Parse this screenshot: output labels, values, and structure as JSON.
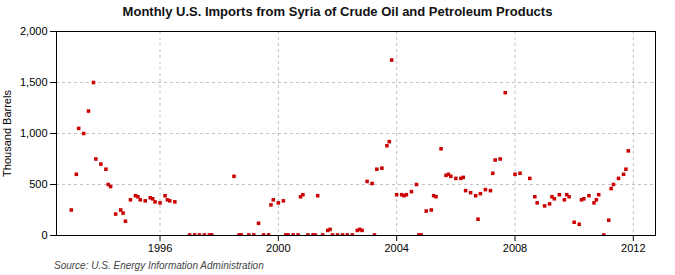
{
  "chart_data": {
    "type": "scatter",
    "title": "Monthly U.S. Imports from Syria of Crude Oil and Petroleum Products",
    "y_label": "Thousand Barrels",
    "annotations": [
      "Source: U.S. Energy Information Administration"
    ],
    "color": "#CC0000",
    "marker": "square",
    "grid": true,
    "xlim": [
      1992.5,
      2012.75
    ],
    "xticks": [
      1996,
      2000,
      2004,
      2008,
      2012
    ],
    "ylim": [
      0,
      2000
    ],
    "yticks": [
      0,
      500,
      {
        "value": 1000,
        "label": "1,000"
      },
      {
        "value": 1500,
        "label": "1,500"
      },
      {
        "value": 2000,
        "label": "2,000"
      }
    ],
    "x": [
      1993.0,
      1993.17,
      1993.25,
      1993.42,
      1993.58,
      1993.75,
      1993.83,
      1994.0,
      1994.17,
      1994.25,
      1994.33,
      1994.5,
      1994.67,
      1994.75,
      1994.83,
      1995.0,
      1995.17,
      1995.25,
      1995.33,
      1995.5,
      1995.67,
      1995.75,
      1995.83,
      1996.0,
      1996.17,
      1996.25,
      1996.33,
      1996.5,
      1997.0,
      1997.17,
      1997.33,
      1997.5,
      1997.67,
      1997.75,
      1998.5,
      1998.67,
      1998.75,
      1999.0,
      1999.17,
      1999.33,
      1999.5,
      1999.67,
      1999.75,
      1999.83,
      2000.0,
      2000.17,
      2000.25,
      2000.33,
      2000.5,
      2000.67,
      2000.75,
      2000.83,
      2001.0,
      2001.17,
      2001.25,
      2001.33,
      2001.5,
      2001.67,
      2001.75,
      2001.83,
      2002.0,
      2002.17,
      2002.33,
      2002.5,
      2002.67,
      2002.75,
      2002.83,
      2003.0,
      2003.17,
      2003.25,
      2003.33,
      2003.5,
      2003.67,
      2003.75,
      2003.83,
      2004.0,
      2004.17,
      2004.25,
      2004.33,
      2004.5,
      2004.67,
      2004.75,
      2004.83,
      2005.0,
      2005.17,
      2005.25,
      2005.33,
      2005.5,
      2005.67,
      2005.75,
      2005.83,
      2006.0,
      2006.17,
      2006.25,
      2006.33,
      2006.5,
      2006.67,
      2006.75,
      2006.83,
      2007.0,
      2007.17,
      2007.25,
      2007.33,
      2007.5,
      2007.67,
      2008.0,
      2008.17,
      2008.5,
      2008.67,
      2008.75,
      2009.0,
      2009.17,
      2009.25,
      2009.33,
      2009.5,
      2009.67,
      2009.75,
      2009.83,
      2010.0,
      2010.17,
      2010.25,
      2010.33,
      2010.5,
      2010.67,
      2010.75,
      2010.83,
      2011.0,
      2011.17,
      2011.25,
      2011.33,
      2011.5,
      2011.67,
      2011.75,
      2011.83
    ],
    "values": [
      250,
      600,
      1050,
      1000,
      1220,
      1500,
      750,
      700,
      650,
      500,
      480,
      210,
      250,
      220,
      140,
      350,
      390,
      380,
      350,
      340,
      370,
      360,
      330,
      320,
      390,
      350,
      340,
      330,
      5,
      5,
      5,
      5,
      5,
      5,
      580,
      5,
      5,
      5,
      5,
      120,
      5,
      5,
      300,
      350,
      320,
      340,
      5,
      5,
      5,
      5,
      380,
      400,
      5,
      5,
      5,
      390,
      5,
      50,
      60,
      5,
      5,
      5,
      5,
      5,
      50,
      60,
      50,
      530,
      510,
      5,
      650,
      660,
      880,
      920,
      1720,
      400,
      400,
      390,
      400,
      430,
      500,
      5,
      5,
      240,
      250,
      390,
      380,
      850,
      590,
      600,
      580,
      560,
      560,
      570,
      440,
      420,
      390,
      160,
      410,
      450,
      440,
      610,
      740,
      750,
      1400,
      600,
      610,
      560,
      380,
      320,
      290,
      310,
      380,
      360,
      400,
      350,
      400,
      380,
      130,
      110,
      350,
      360,
      390,
      320,
      350,
      400,
      5,
      150,
      460,
      500,
      560,
      600,
      650,
      830
    ]
  }
}
